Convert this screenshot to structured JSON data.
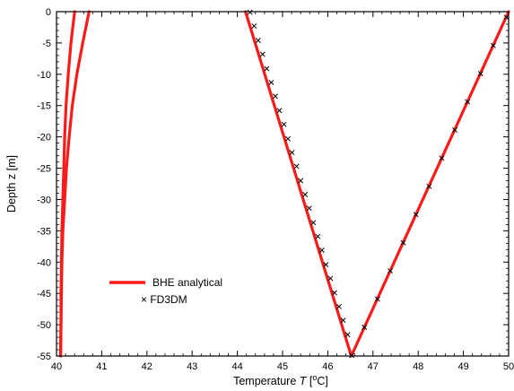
{
  "chart_data": {
    "type": "line",
    "xlabel": "Temperature T [oC]",
    "xlabel_parts": {
      "pre": "Temperature ",
      "var": "T",
      "open": " [",
      "sup": "o",
      "unit": "C]"
    },
    "ylabel": "Depth z [m]",
    "xlim": [
      40,
      50
    ],
    "ylim": [
      -55,
      0
    ],
    "xticks": [
      "40",
      "41",
      "42",
      "43",
      "44",
      "45",
      "46",
      "47",
      "48",
      "49",
      "50"
    ],
    "yticks": [
      "0",
      "-5",
      "-10",
      "-15",
      "-20",
      "-25",
      "-30",
      "-35",
      "-40",
      "-45",
      "-50",
      "-55"
    ],
    "grid": false,
    "legend_placement": "lower-left",
    "legend": [
      "BHE analytical",
      "× FD3DM"
    ],
    "series": [
      {
        "name": "BHE analytical",
        "style": "line",
        "color": "#ff1a1a",
        "curves": [
          {
            "x": [
              40.4,
              40.32,
              40.26,
              40.21,
              40.18,
              40.16,
              40.14,
              40.12,
              40.11,
              40.1,
              40.1,
              40.09
            ],
            "y": [
              0,
              -5,
              -10,
              -15,
              -20,
              -25,
              -30,
              -35,
              -40,
              -45,
              -50,
              -55
            ]
          },
          {
            "x": [
              40.72,
              40.58,
              40.45,
              40.35,
              40.28,
              40.22,
              40.18,
              40.14,
              40.12,
              40.11,
              40.1,
              40.09
            ],
            "y": [
              0,
              -5,
              -10,
              -15,
              -20,
              -25,
              -30,
              -35,
              -40,
              -45,
              -50,
              -55
            ]
          },
          {
            "x": [
              44.18,
              46.52,
              50.0
            ],
            "y": [
              0,
              -55,
              0
            ]
          }
        ]
      },
      {
        "name": "FD3DM",
        "style": "markers",
        "marker": "x",
        "color": "#000000",
        "x": [
          44.28,
          44.37,
          44.46,
          44.56,
          44.65,
          44.75,
          44.84,
          44.93,
          45.03,
          45.12,
          45.21,
          45.31,
          45.4,
          45.5,
          45.59,
          45.68,
          45.78,
          45.87,
          45.96,
          46.06,
          46.15,
          46.25,
          46.34,
          46.44,
          46.53,
          46.81,
          47.1,
          47.38,
          47.67,
          47.95,
          48.24,
          48.52,
          48.81,
          49.09,
          49.38,
          49.66,
          49.95
        ],
        "y": [
          -0.1,
          -2.3,
          -4.6,
          -6.8,
          -9.1,
          -11.3,
          -13.5,
          -15.8,
          -18.0,
          -20.3,
          -22.5,
          -24.7,
          -27.0,
          -29.2,
          -31.4,
          -33.7,
          -35.9,
          -38.1,
          -40.4,
          -42.6,
          -44.9,
          -47.1,
          -49.3,
          -51.6,
          -54.9,
          -50.4,
          -45.9,
          -41.4,
          -36.9,
          -32.4,
          -27.9,
          -23.4,
          -18.9,
          -14.4,
          -9.9,
          -5.4,
          -0.9
        ]
      }
    ]
  }
}
